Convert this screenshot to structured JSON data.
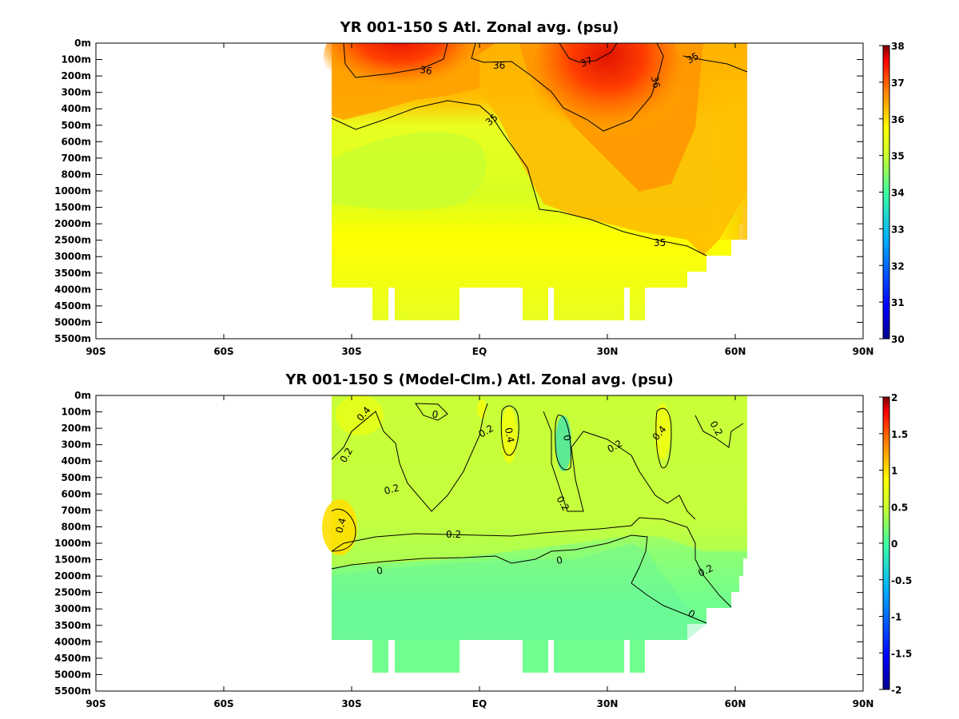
{
  "chart_data": [
    {
      "type": "heatmap",
      "title": "YR 001-150 S Atl. Zonal avg. (psu)",
      "x_ticks": [
        "90S",
        "60S",
        "30S",
        "EQ",
        "30N",
        "60N",
        "90N"
      ],
      "x_values": [
        -90,
        -60,
        -30,
        0,
        30,
        60,
        90
      ],
      "y_ticks": [
        "0m",
        "100m",
        "200m",
        "300m",
        "400m",
        "500m",
        "600m",
        "700m",
        "800m",
        "1000m",
        "1500m",
        "2000m",
        "2500m",
        "3000m",
        "3500m",
        "4000m",
        "4500m",
        "5000m",
        "5500m"
      ],
      "colorbar": {
        "min": 30,
        "max": 38,
        "ticks": [
          "38",
          "37",
          "36",
          "35",
          "34",
          "33",
          "32",
          "31",
          "30"
        ],
        "tick_values": [
          38,
          37,
          36,
          35,
          34,
          33,
          32,
          31,
          30
        ],
        "colors": [
          "#0000a0",
          "#0000ff",
          "#0060ff",
          "#00c0ff",
          "#40ffb0",
          "#b0ff40",
          "#ffff00",
          "#ffb000",
          "#ff5000",
          "#d00000",
          "#800000"
        ]
      },
      "contour_labels": [
        "36",
        "36",
        "37",
        "35",
        "36",
        "35",
        "35"
      ],
      "data_extent": {
        "lat_min": -35,
        "lat_max": 63,
        "depth_max": "5000m"
      },
      "levels_note": "salinity ~34.5-35 at depth, up to ~37.5 near 25N surface",
      "fields": {
        "surface_max_psu": 37.5,
        "deep_value_psu": 35.0,
        "intermediate_min_psu": 34.5
      }
    },
    {
      "type": "heatmap",
      "title": "YR 001-150 S (Model-Clm.) Atl. Zonal avg. (psu)",
      "x_ticks": [
        "90S",
        "60S",
        "30S",
        "EQ",
        "30N",
        "60N",
        "90N"
      ],
      "x_values": [
        -90,
        -60,
        -30,
        0,
        30,
        60,
        90
      ],
      "y_ticks": [
        "0m",
        "100m",
        "200m",
        "300m",
        "400m",
        "500m",
        "600m",
        "700m",
        "800m",
        "1000m",
        "1500m",
        "2000m",
        "2500m",
        "3000m",
        "3500m",
        "4000m",
        "4500m",
        "5000m",
        "5500m"
      ],
      "colorbar": {
        "min": -2,
        "max": 2,
        "ticks": [
          "2",
          "1.5",
          "1",
          "0.5",
          "0",
          "-0.5",
          "-1",
          "-1.5",
          "-2"
        ],
        "tick_values": [
          2,
          1.5,
          1,
          0.5,
          0,
          -0.5,
          -1,
          -1.5,
          -2
        ],
        "colors": [
          "#0000a0",
          "#0000ff",
          "#0060ff",
          "#00c0ff",
          "#40ffb0",
          "#b0ff40",
          "#ffff00",
          "#ffb000",
          "#ff5000",
          "#d00000",
          "#800000"
        ]
      },
      "contour_labels": [
        "0.4",
        "0",
        "0.2",
        "0.4",
        "0",
        "0.2",
        "0.4",
        "0.2",
        "0.2",
        "0.2",
        "0.2",
        "0.4",
        "0.2",
        "0",
        "0",
        "0.2",
        "0"
      ],
      "data_extent": {
        "lat_min": -35,
        "lat_max": 63,
        "depth_max": "5000m"
      },
      "fields": {
        "upper_bias_psu": 0.3,
        "deep_bias_psu": -0.1
      }
    }
  ]
}
